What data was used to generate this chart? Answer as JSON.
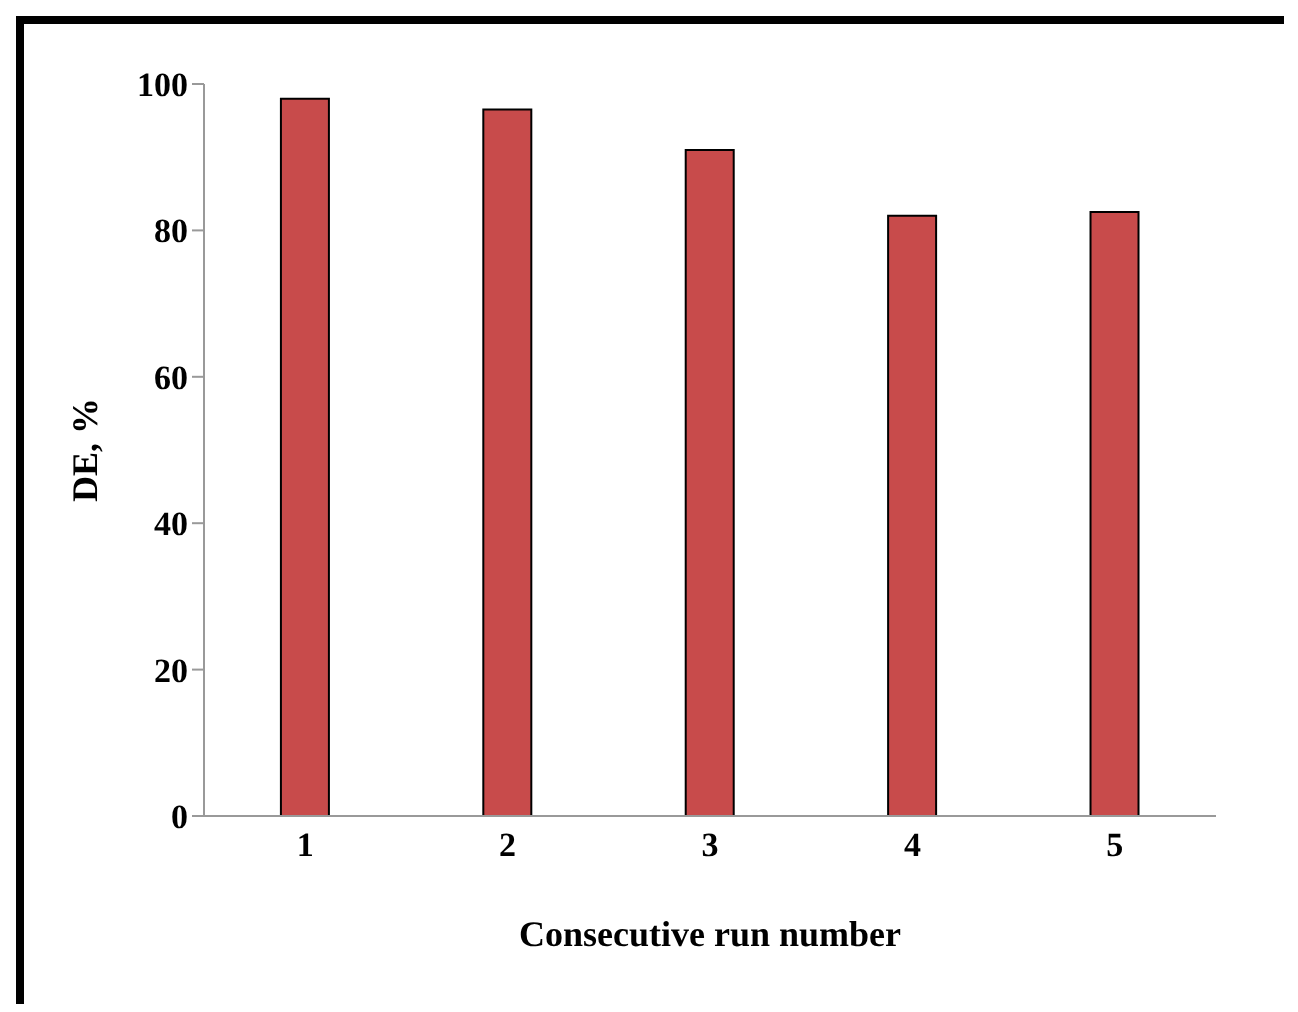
{
  "chart_data": {
    "type": "bar",
    "xlabel": "Consecutive run number",
    "ylabel": "DE, %",
    "categories": [
      "1",
      "2",
      "3",
      "4",
      "5"
    ],
    "values": [
      98,
      96.5,
      91,
      82,
      82.5
    ],
    "color": "#c84b4b",
    "ylim": [
      0,
      100
    ],
    "yticks": [
      0,
      20,
      40,
      60,
      80,
      100
    ]
  }
}
